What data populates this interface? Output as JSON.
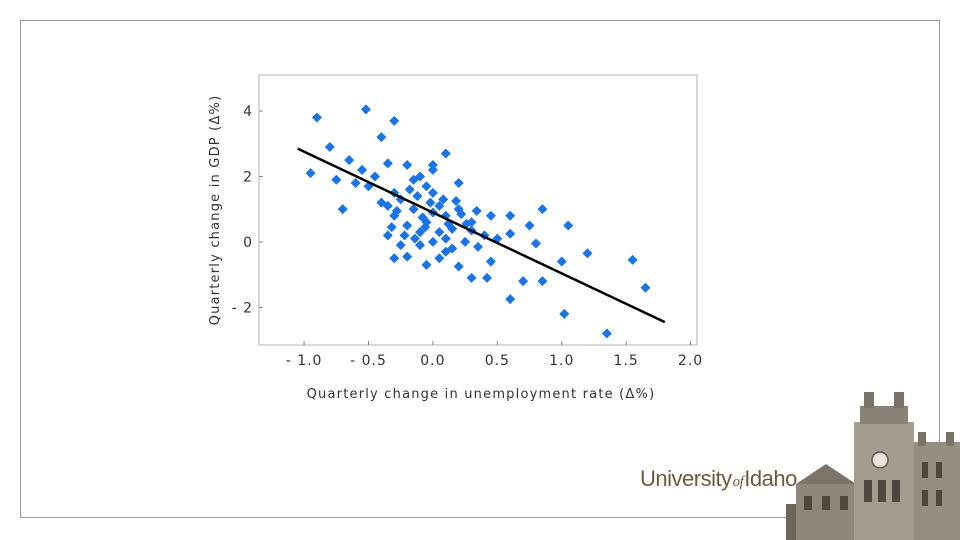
{
  "branding": {
    "logo_word1": "University",
    "logo_word2": "of",
    "logo_word3": "Idaho"
  },
  "chart_data": {
    "type": "scatter",
    "title": "",
    "xlabel": "Quarterly change in unemployment rate (Δ%)",
    "ylabel": "Quarterly change in GDP (Δ%)",
    "xlim": [
      -1.35,
      2.05
    ],
    "ylim": [
      -3.15,
      5.1
    ],
    "xticks": [
      -1.0,
      -0.5,
      0.0,
      0.5,
      1.0,
      1.5,
      2.0
    ],
    "xtick_labels": [
      "- 1.0",
      "- 0.5",
      "0.0",
      "0.5",
      "1.0",
      "1.5",
      "2.0"
    ],
    "yticks": [
      -2,
      0,
      2,
      4
    ],
    "ytick_labels": [
      "- 2",
      "0",
      "2",
      "4"
    ],
    "grid": false,
    "point_color": "#1a74e8",
    "line_color": "#000000",
    "regression_line": {
      "x": [
        -1.05,
        1.8
      ],
      "y": [
        2.85,
        -2.45
      ]
    },
    "points": [
      [
        -0.9,
        3.8
      ],
      [
        -0.52,
        4.05
      ],
      [
        -0.3,
        3.7
      ],
      [
        -0.4,
        3.2
      ],
      [
        -0.8,
        2.9
      ],
      [
        -0.65,
        2.5
      ],
      [
        -0.2,
        2.35
      ],
      [
        -0.35,
        2.4
      ],
      [
        0.1,
        2.7
      ],
      [
        -0.95,
        2.1
      ],
      [
        -0.75,
        1.9
      ],
      [
        -0.6,
        1.8
      ],
      [
        -0.5,
        1.7
      ],
      [
        -0.45,
        2.0
      ],
      [
        -0.7,
        1.0
      ],
      [
        -0.55,
        2.2
      ],
      [
        -0.3,
        1.5
      ],
      [
        -0.15,
        1.9
      ],
      [
        0.2,
        1.8
      ],
      [
        0.45,
        0.8
      ],
      [
        0.6,
        0.8
      ],
      [
        0.85,
        1.0
      ],
      [
        1.05,
        0.5
      ],
      [
        0.75,
        0.5
      ],
      [
        0.6,
        0.25
      ],
      [
        0.5,
        0.1
      ],
      [
        0.8,
        -0.05
      ],
      [
        1.0,
        -0.6
      ],
      [
        1.2,
        -0.35
      ],
      [
        1.55,
        -0.55
      ],
      [
        1.65,
        -1.4
      ],
      [
        1.35,
        -2.8
      ],
      [
        1.02,
        -2.2
      ],
      [
        0.85,
        -1.2
      ],
      [
        0.7,
        -1.2
      ],
      [
        0.6,
        -1.75
      ],
      [
        0.42,
        -1.1
      ],
      [
        0.3,
        -1.1
      ],
      [
        0.45,
        -0.6
      ],
      [
        0.2,
        -0.75
      ],
      [
        0.05,
        -0.5
      ],
      [
        -0.05,
        -0.7
      ],
      [
        -0.2,
        -0.45
      ],
      [
        -0.3,
        -0.5
      ],
      [
        -0.1,
        -0.1
      ],
      [
        -0.25,
        -0.1
      ],
      [
        -0.35,
        0.2
      ],
      [
        -0.1,
        0.3
      ],
      [
        0.0,
        0.0
      ],
      [
        0.1,
        0.1
      ],
      [
        0.25,
        0.0
      ],
      [
        0.35,
        -0.15
      ],
      [
        -0.2,
        0.5
      ],
      [
        -0.05,
        0.6
      ],
      [
        0.15,
        0.4
      ],
      [
        0.3,
        0.35
      ],
      [
        -0.15,
        1.0
      ],
      [
        0.05,
        1.1
      ],
      [
        -0.25,
        1.3
      ],
      [
        0.0,
        1.5
      ],
      [
        -0.05,
        1.7
      ],
      [
        -0.1,
        2.0
      ],
      [
        0.0,
        2.2
      ],
      [
        -0.3,
        0.8
      ],
      [
        0.2,
        1.0
      ],
      [
        0.1,
        0.8
      ],
      [
        0.0,
        0.9
      ],
      [
        -0.35,
        1.1
      ],
      [
        0.3,
        0.6
      ],
      [
        -0.12,
        1.4
      ],
      [
        0.05,
        0.3
      ],
      [
        -0.22,
        0.2
      ],
      [
        0.15,
        -0.2
      ],
      [
        0.4,
        0.2
      ],
      [
        -0.4,
        1.2
      ],
      [
        -0.08,
        0.75
      ],
      [
        0.22,
        0.85
      ],
      [
        -0.18,
        1.6
      ],
      [
        0.08,
        1.3
      ],
      [
        -0.28,
        0.95
      ],
      [
        0.0,
        2.35
      ],
      [
        -0.02,
        1.2
      ],
      [
        0.12,
        0.55
      ],
      [
        -0.14,
        0.1
      ],
      [
        0.26,
        0.55
      ],
      [
        0.1,
        -0.3
      ],
      [
        -0.32,
        0.45
      ],
      [
        0.18,
        1.25
      ],
      [
        -0.06,
        0.45
      ],
      [
        0.34,
        0.95
      ]
    ]
  }
}
